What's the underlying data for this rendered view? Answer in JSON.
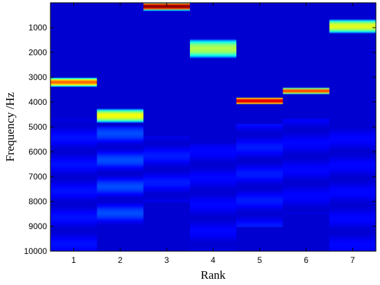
{
  "chart_data": {
    "type": "heatmap",
    "title": "",
    "xlabel": "Rank",
    "ylabel": "Frequency /Hz",
    "x_categories": [
      "1",
      "2",
      "3",
      "4",
      "5",
      "6",
      "7"
    ],
    "y_ticks": [
      1000,
      2000,
      3000,
      4000,
      5000,
      6000,
      7000,
      8000,
      9000,
      10000
    ],
    "ylim": [
      0,
      10000
    ],
    "y_inverted": true,
    "colormap": "jet",
    "background_level": 0.08,
    "peaks": [
      {
        "rank": "1",
        "center": 3200,
        "width": 350,
        "intensity": 0.78
      },
      {
        "rank": "2",
        "center": 4550,
        "width": 550,
        "intensity": 0.62
      },
      {
        "rank": "3",
        "center": 150,
        "width": 320,
        "intensity": 1.0
      },
      {
        "rank": "4",
        "center": 1850,
        "width": 750,
        "intensity": 0.55
      },
      {
        "rank": "5",
        "center": 3950,
        "width": 300,
        "intensity": 0.92
      },
      {
        "rank": "6",
        "center": 3550,
        "width": 250,
        "intensity": 0.82
      },
      {
        "rank": "7",
        "center": 950,
        "width": 550,
        "intensity": 0.6
      }
    ],
    "secondary_bands": [
      {
        "rank": "1",
        "from": 4700,
        "to": 10000,
        "intensity": 0.14
      },
      {
        "rank": "2",
        "from": 5000,
        "to": 9000,
        "intensity": 0.2
      },
      {
        "rank": "3",
        "from": 5400,
        "to": 8000,
        "intensity": 0.15
      },
      {
        "rank": "4",
        "from": 5700,
        "to": 10000,
        "intensity": 0.13
      },
      {
        "rank": "5",
        "from": 4900,
        "to": 9000,
        "intensity": 0.15
      },
      {
        "rank": "6",
        "from": 4700,
        "to": 8500,
        "intensity": 0.13
      },
      {
        "rank": "7",
        "from": 4900,
        "to": 10000,
        "intensity": 0.13
      }
    ]
  }
}
